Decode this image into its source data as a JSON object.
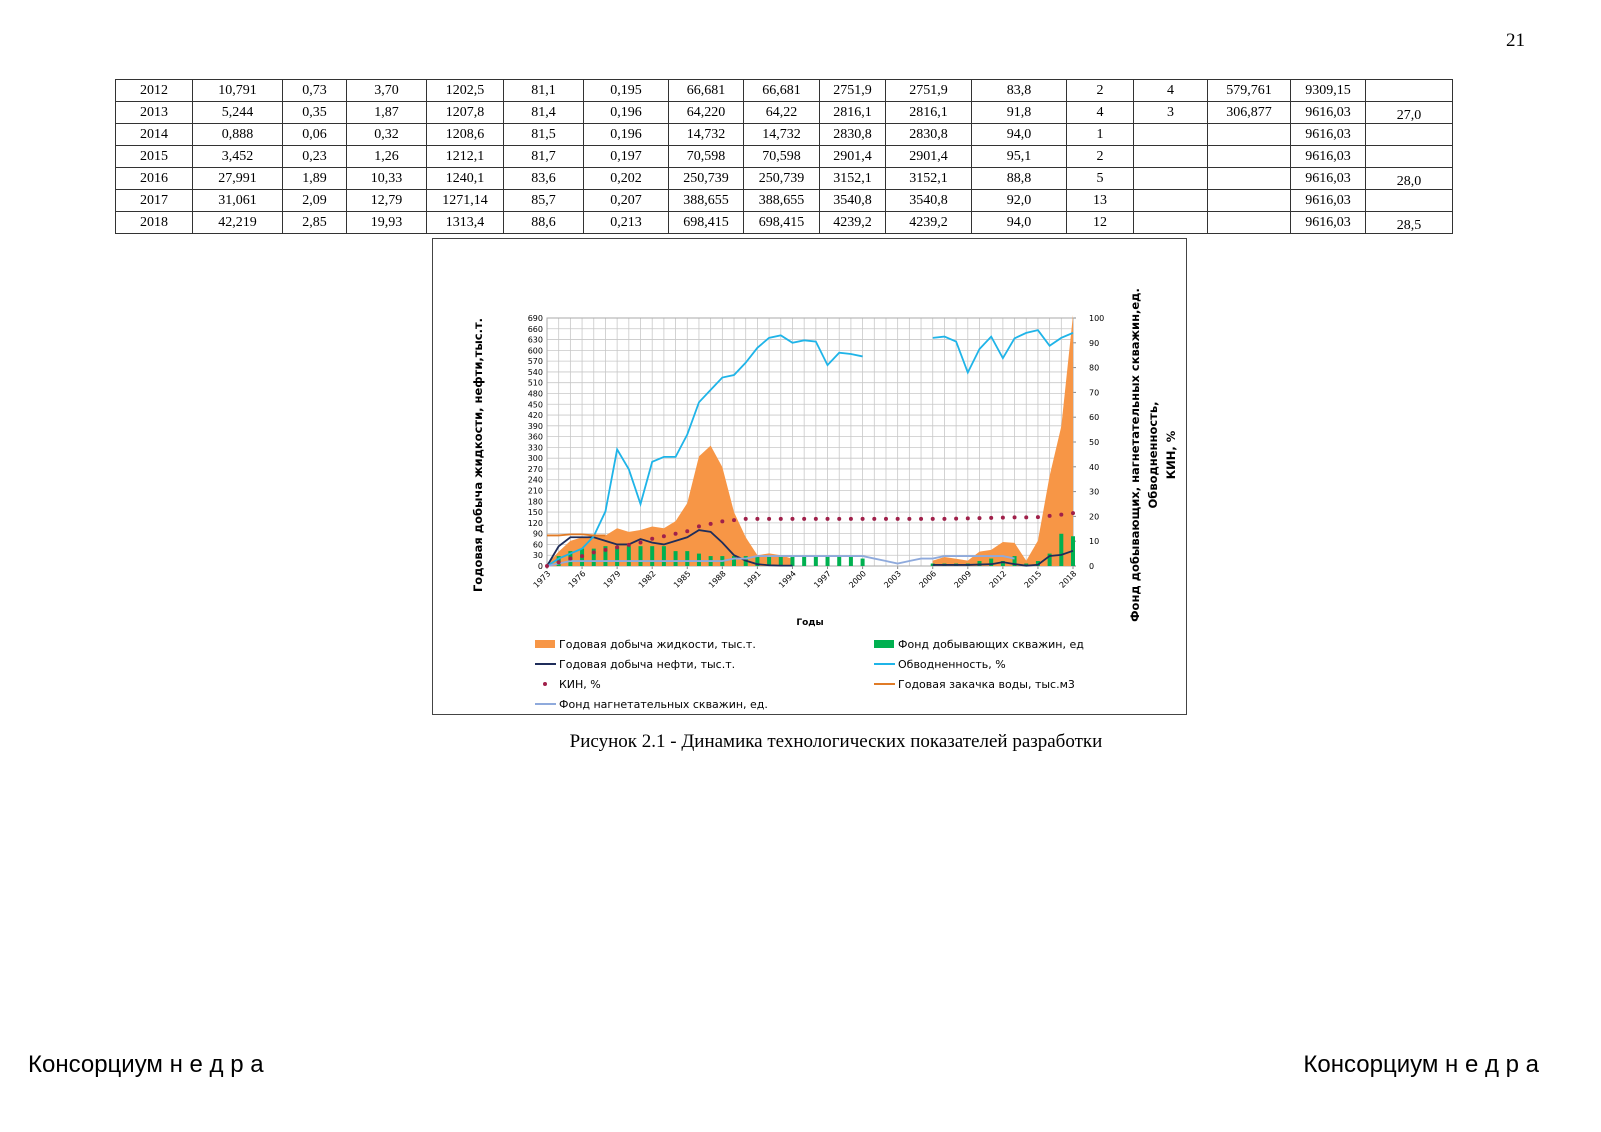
{
  "page_number": "21",
  "table": {
    "rows": [
      [
        "2012",
        "10,791",
        "0,73",
        "3,70",
        "1202,5",
        "81,1",
        "0,195",
        "66,681",
        "66,681",
        "2751,9",
        "2751,9",
        "83,8",
        "2",
        "4",
        "579,761",
        "9309,15",
        null
      ],
      [
        "2013",
        "5,244",
        "0,35",
        "1,87",
        "1207,8",
        "81,4",
        "0,196",
        "64,220",
        "64,22",
        "2816,1",
        "2816,1",
        "91,8",
        "4",
        "3",
        "306,877",
        "9616,03",
        "27,0"
      ],
      [
        "2014",
        "0,888",
        "0,06",
        "0,32",
        "1208,6",
        "81,5",
        "0,196",
        "14,732",
        "14,732",
        "2830,8",
        "2830,8",
        "94,0",
        "1",
        null,
        null,
        "9616,03",
        null
      ],
      [
        "2015",
        "3,452",
        "0,23",
        "1,26",
        "1212,1",
        "81,7",
        "0,197",
        "70,598",
        "70,598",
        "2901,4",
        "2901,4",
        "95,1",
        "2",
        null,
        null,
        "9616,03",
        null
      ],
      [
        "2016",
        "27,991",
        "1,89",
        "10,33",
        "1240,1",
        "83,6",
        "0,202",
        "250,739",
        "250,739",
        "3152,1",
        "3152,1",
        "88,8",
        "5",
        null,
        null,
        "9616,03",
        "28,0"
      ],
      [
        "2017",
        "31,061",
        "2,09",
        "12,79",
        "1271,14",
        "85,7",
        "0,207",
        "388,655",
        "388,655",
        "3540,8",
        "3540,8",
        "92,0",
        "13",
        null,
        null,
        "9616,03",
        null
      ],
      [
        "2018",
        "42,219",
        "2,85",
        "19,93",
        "1313,4",
        "88,6",
        "0,213",
        "698,415",
        "698,415",
        "4239,2",
        "4239,2",
        "94,0",
        "12",
        null,
        null,
        "9616,03",
        "28,5"
      ]
    ]
  },
  "chart_data": {
    "type": "combo",
    "y_label": "Годовая добыча жидкости, нефти,тыс.т.",
    "y2_label": [
      "Фонд добывающих, нагнетательных скважин,ед.",
      "Обводненность,",
      "КИН, %"
    ],
    "x_label": "Годы",
    "x": [
      1973,
      1974,
      1975,
      1976,
      1977,
      1978,
      1979,
      1980,
      1981,
      1982,
      1983,
      1984,
      1985,
      1986,
      1987,
      1988,
      1989,
      1990,
      1991,
      1992,
      1993,
      1994,
      1995,
      1996,
      1997,
      1998,
      1999,
      2000,
      2001,
      2002,
      2003,
      2004,
      2005,
      2006,
      2007,
      2008,
      2009,
      2010,
      2011,
      2012,
      2013,
      2014,
      2015,
      2016,
      2017,
      2018
    ],
    "xlim": [
      1973,
      2018
    ],
    "xticks": [
      1973,
      1976,
      1979,
      1982,
      1985,
      1988,
      1991,
      1994,
      1997,
      2000,
      2003,
      2006,
      2009,
      2012,
      2015,
      2018
    ],
    "ylim": [
      0,
      690
    ],
    "yticks": [
      0,
      30,
      60,
      90,
      120,
      150,
      180,
      210,
      240,
      270,
      300,
      330,
      360,
      390,
      420,
      450,
      480,
      510,
      540,
      570,
      600,
      630,
      660,
      690
    ],
    "y2lim": [
      0,
      100
    ],
    "y2ticks": [
      0,
      10,
      20,
      30,
      40,
      50,
      60,
      70,
      80,
      90,
      100
    ],
    "grid": true,
    "series": [
      {
        "name": "Годовая добыча жидкости, тыс.т.",
        "mark": "area",
        "color": "#f79646",
        "values": [
          5,
          40,
          70,
          80,
          85,
          85,
          105,
          95,
          100,
          110,
          105,
          125,
          175,
          305,
          335,
          275,
          150,
          80,
          30,
          35,
          30,
          20,
          null,
          null,
          null,
          null,
          null,
          null,
          null,
          null,
          null,
          null,
          null,
          15,
          25,
          20,
          15,
          40,
          45,
          66.681,
          64.22,
          14.732,
          70.598,
          250.739,
          388.655,
          698.415
        ]
      },
      {
        "name": "Фонд добывающих скважин, ед",
        "mark": "bar",
        "axis": "y2",
        "color": "#00b050",
        "values": [
          0,
          4,
          6,
          7,
          7,
          8,
          8,
          8,
          8,
          8,
          8,
          6,
          6,
          5,
          4,
          4,
          4,
          4,
          4,
          4,
          4,
          4,
          4,
          4,
          4,
          4,
          4,
          3,
          null,
          null,
          null,
          null,
          null,
          1,
          1,
          1,
          1,
          2,
          3,
          2,
          4,
          1,
          2,
          5,
          13,
          12
        ]
      },
      {
        "name": "Годовая добыча нефти, тыс.т.",
        "mark": "line",
        "color": "#1f2d5a",
        "values": [
          0,
          55,
          80,
          80,
          80,
          70,
          60,
          60,
          75,
          65,
          60,
          70,
          80,
          100,
          95,
          65,
          30,
          15,
          5,
          2,
          1,
          1,
          null,
          null,
          null,
          null,
          null,
          null,
          null,
          null,
          null,
          null,
          null,
          3,
          3,
          3,
          3,
          4,
          5,
          10.791,
          5.244,
          0.888,
          3.452,
          27.991,
          31.061,
          42.219
        ]
      },
      {
        "name": "Обводненность,  %",
        "mark": "line",
        "axis": "y2",
        "color": "#1fb4e8",
        "values": [
          0,
          3,
          5,
          7,
          12,
          22,
          47,
          39,
          25,
          42,
          44,
          44,
          53,
          66,
          71,
          76,
          77,
          82,
          88,
          92,
          93,
          90,
          91,
          90.5,
          81,
          86,
          85.5,
          84.5,
          null,
          null,
          null,
          null,
          null,
          92,
          92.5,
          90.5,
          78,
          87.5,
          92.5,
          83.8,
          91.8,
          94.0,
          95.1,
          88.8,
          92.0,
          94.0
        ]
      },
      {
        "name": "КИН, %",
        "mark": "dots",
        "axis": "y2",
        "color": "#a0204a",
        "values": [
          0,
          1.5,
          3,
          4,
          5.5,
          6.5,
          7.5,
          8.5,
          9.5,
          11,
          12,
          13,
          14,
          16,
          17,
          18,
          18.5,
          19,
          19,
          19,
          19,
          19,
          19,
          19,
          19,
          19,
          19,
          19,
          19,
          19,
          19,
          19,
          19,
          19,
          19,
          19.1,
          19.2,
          19.3,
          19.4,
          19.5,
          19.6,
          19.6,
          19.7,
          20.2,
          20.7,
          21.3
        ]
      },
      {
        "name": "Годовая закачка воды, тыс.м3",
        "mark": "line",
        "color": "#e07b27",
        "values": [
          85,
          85,
          88,
          88,
          85,
          85,
          null,
          null,
          null,
          null,
          null,
          null,
          null,
          null,
          null,
          null,
          null,
          null,
          null,
          null,
          null,
          null,
          null,
          null,
          null,
          null,
          null,
          null,
          null,
          null,
          null,
          null,
          null,
          null,
          null,
          null,
          null,
          null,
          null,
          null,
          null,
          null,
          null,
          null,
          null,
          null
        ]
      },
      {
        "name": "Фонд нагнетательных скважин, ед.",
        "mark": "line",
        "axis": "y2",
        "color": "#8faadc",
        "values": [
          0,
          1,
          2,
          2,
          2,
          2,
          2,
          2,
          2,
          2,
          2,
          2,
          2,
          2,
          2,
          2,
          3,
          3,
          4,
          4,
          4,
          4,
          4,
          4,
          4,
          4,
          4,
          4,
          3,
          2,
          1,
          2,
          3,
          3,
          4,
          4,
          4,
          4,
          4,
          4,
          3,
          null,
          null,
          null,
          null,
          null
        ]
      }
    ]
  },
  "caption": "Рисунок 2.1 - Динамика технологических показателей разработки",
  "footer": {
    "left": "Консорциум н е д р а",
    "right": "Консорциум н е д р а"
  }
}
